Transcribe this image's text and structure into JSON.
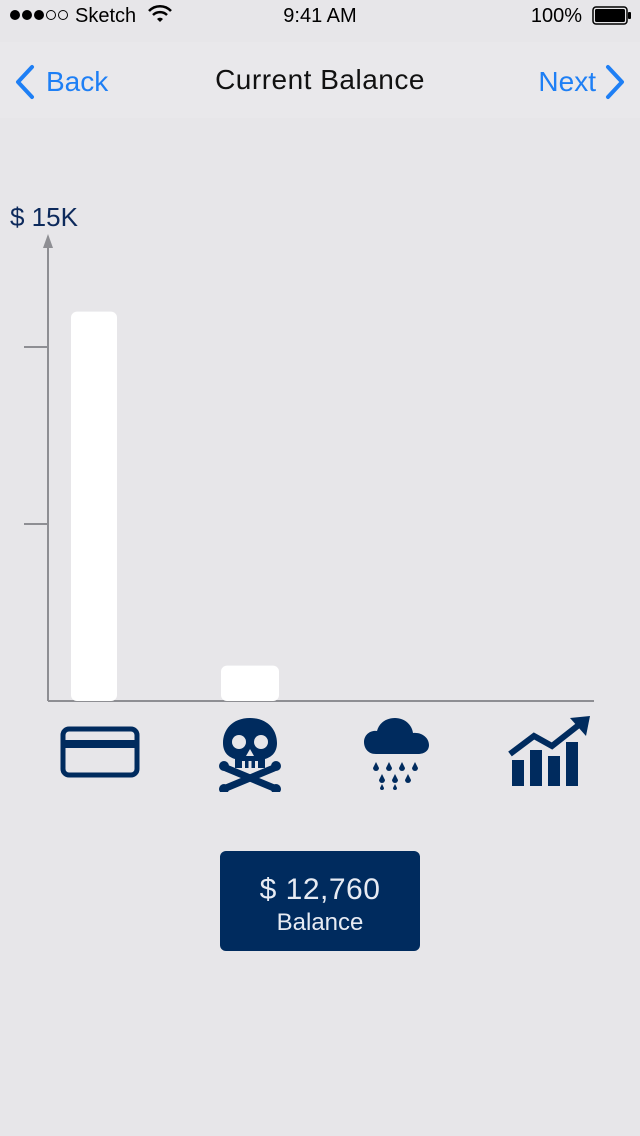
{
  "status_bar": {
    "carrier": "Sketch",
    "time": "9:41 AM",
    "battery": "100%"
  },
  "nav": {
    "back_label": "Back",
    "title": "Current Balance",
    "next_label": "Next"
  },
  "chart_data": {
    "type": "bar",
    "categories": [
      "credit-card",
      "debt",
      "emergency",
      "investments"
    ],
    "values": [
      11000,
      1000,
      0,
      0
    ],
    "ylim": [
      0,
      15000
    ],
    "y_max_label": "$ 15K",
    "grid": false,
    "colors": {
      "bar": "#ffffff",
      "axis": "#8e8e93"
    }
  },
  "categories": [
    {
      "icon": "credit-card-icon"
    },
    {
      "icon": "skull-crossbones-icon"
    },
    {
      "icon": "rain-cloud-icon"
    },
    {
      "icon": "growth-chart-icon"
    }
  ],
  "balance": {
    "amount": "$ 12,760",
    "label": "Balance"
  },
  "colors": {
    "background": "#e7e6e9",
    "accent": "#1e7ff5",
    "navy": "#002b5e"
  }
}
